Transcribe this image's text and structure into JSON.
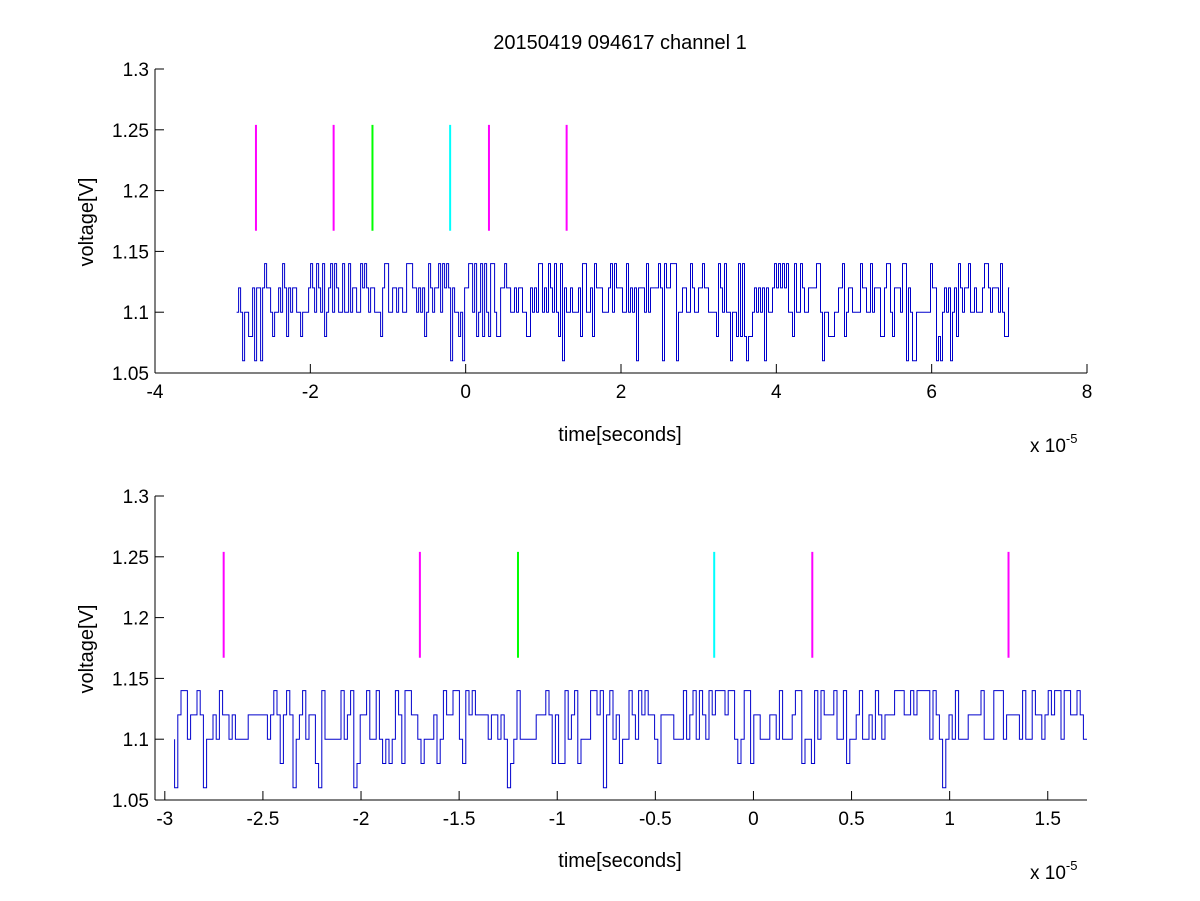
{
  "figure": {
    "title": "20150419 094617 channel 1",
    "background": "#ffffff",
    "trace_color": "#0000cc",
    "marker_colors": {
      "magenta": "#ff00ff",
      "green": "#00ff00",
      "cyan": "#00ffff"
    }
  },
  "chart_data": [
    {
      "type": "line",
      "title": "20150419 094617 channel 1",
      "xlabel": "time[seconds]",
      "ylabel": "voltage[V]",
      "x_exponent_label": "x 10",
      "x_exponent": "-5",
      "xlim": [
        -4e-05,
        8e-05
      ],
      "ylim": [
        1.05,
        1.3
      ],
      "xticks": [
        -4e-05,
        -2e-05,
        0,
        2e-05,
        4e-05,
        6e-05,
        8e-05
      ],
      "xtick_labels": [
        "-4",
        "-2",
        "0",
        "2",
        "4",
        "6",
        "8"
      ],
      "yticks": [
        1.05,
        1.1,
        1.15,
        1.2,
        1.25,
        1.3
      ],
      "ytick_labels": [
        "1.05",
        "1.1",
        "1.15",
        "1.2",
        "1.25",
        "1.3"
      ],
      "grid": false,
      "series": [
        {
          "x_start": -2.95e-05,
          "x_end": 7e-05,
          "levels": [
            1.06,
            1.08,
            1.1,
            1.12,
            1.14
          ],
          "baseline": 1.1,
          "color": "#0000cc"
        }
      ],
      "markers": [
        {
          "x": -2.7e-05,
          "y_from": 1.167,
          "y_to": 1.254,
          "color": "#ff00ff"
        },
        {
          "x": -1.7e-05,
          "y_from": 1.167,
          "y_to": 1.254,
          "color": "#ff00ff"
        },
        {
          "x": -1.2e-05,
          "y_from": 1.167,
          "y_to": 1.254,
          "color": "#00ff00"
        },
        {
          "x": -2e-06,
          "y_from": 1.167,
          "y_to": 1.254,
          "color": "#00ffff"
        },
        {
          "x": 3e-06,
          "y_from": 1.167,
          "y_to": 1.254,
          "color": "#ff00ff"
        },
        {
          "x": 1.3e-05,
          "y_from": 1.167,
          "y_to": 1.254,
          "color": "#ff00ff"
        }
      ]
    },
    {
      "type": "line",
      "xlabel": "time[seconds]",
      "ylabel": "voltage[V]",
      "x_exponent_label": "x 10",
      "x_exponent": "-5",
      "xlim": [
        -3.05e-05,
        1.7e-05
      ],
      "ylim": [
        1.05,
        1.3
      ],
      "xticks": [
        -3e-05,
        -2.5e-05,
        -2e-05,
        -1.5e-05,
        -1e-05,
        -5e-06,
        0,
        5e-06,
        1e-05,
        1.5e-05
      ],
      "xtick_labels": [
        "-3",
        "-2.5",
        "-2",
        "-1.5",
        "-1",
        "-0.5",
        "0",
        "0.5",
        "1",
        "1.5"
      ],
      "yticks": [
        1.05,
        1.1,
        1.15,
        1.2,
        1.25,
        1.3
      ],
      "ytick_labels": [
        "1.05",
        "1.1",
        "1.15",
        "1.2",
        "1.25",
        "1.3"
      ],
      "grid": false,
      "series": [
        {
          "x_start": -2.95e-05,
          "x_end": 1.7e-05,
          "levels": [
            1.06,
            1.08,
            1.1,
            1.12,
            1.14
          ],
          "baseline": 1.1,
          "color": "#0000cc"
        }
      ],
      "markers": [
        {
          "x": -2.7e-05,
          "y_from": 1.167,
          "y_to": 1.254,
          "color": "#ff00ff"
        },
        {
          "x": -1.7e-05,
          "y_from": 1.167,
          "y_to": 1.254,
          "color": "#ff00ff"
        },
        {
          "x": -1.2e-05,
          "y_from": 1.167,
          "y_to": 1.254,
          "color": "#00ff00"
        },
        {
          "x": -2e-06,
          "y_from": 1.167,
          "y_to": 1.254,
          "color": "#00ffff"
        },
        {
          "x": 3e-06,
          "y_from": 1.167,
          "y_to": 1.254,
          "color": "#ff00ff"
        },
        {
          "x": 1.3e-05,
          "y_from": 1.167,
          "y_to": 1.254,
          "color": "#ff00ff"
        }
      ]
    }
  ]
}
